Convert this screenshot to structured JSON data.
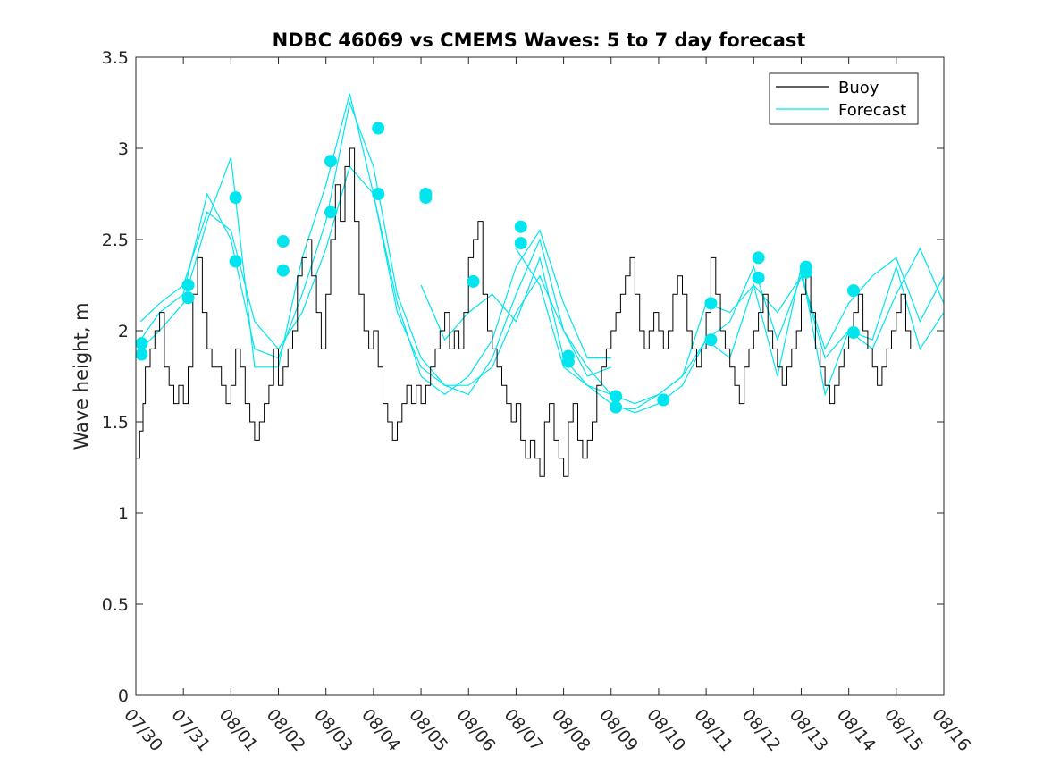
{
  "chart_data": {
    "type": "line",
    "title": "NDBC 46069 vs CMEMS Waves: 5 to 7 day forecast",
    "xlabel": "",
    "ylabel": "Wave height, m",
    "xlim": [
      0,
      17
    ],
    "ylim": [
      0,
      3.5
    ],
    "x_tick_labels": [
      "07/30",
      "07/31",
      "08/01",
      "08/02",
      "08/03",
      "08/04",
      "08/05",
      "08/06",
      "08/07",
      "08/08",
      "08/09",
      "08/10",
      "08/11",
      "08/12",
      "08/13",
      "08/14",
      "08/15",
      "08/16"
    ],
    "y_ticks": [
      0,
      0.5,
      1,
      1.5,
      2,
      2.5,
      3,
      3.5
    ],
    "y_tick_labels": [
      "0",
      "0.5",
      "1",
      "1.5",
      "2",
      "2.5",
      "3",
      "3.5"
    ],
    "legend": {
      "position": "top-right",
      "entries": [
        {
          "label": "Buoy",
          "color": "#000000"
        },
        {
          "label": "Forecast",
          "color": "#00e5ee"
        }
      ]
    },
    "colors": {
      "buoy": "#000000",
      "forecast": "#00e5ee"
    },
    "series": [
      {
        "name": "Buoy",
        "color": "#000000",
        "x": [
          0,
          0.08,
          0.15,
          0.2,
          0.3,
          0.4,
          0.5,
          0.6,
          0.7,
          0.8,
          0.9,
          1.0,
          1.1,
          1.2,
          1.3,
          1.4,
          1.5,
          1.6,
          1.7,
          1.8,
          1.9,
          2.0,
          2.1,
          2.2,
          2.3,
          2.4,
          2.5,
          2.6,
          2.7,
          2.8,
          2.9,
          3.0,
          3.1,
          3.2,
          3.3,
          3.4,
          3.5,
          3.6,
          3.7,
          3.8,
          3.9,
          4.0,
          4.1,
          4.2,
          4.3,
          4.4,
          4.5,
          4.6,
          4.7,
          4.8,
          4.9,
          5.0,
          5.1,
          5.2,
          5.3,
          5.4,
          5.5,
          5.6,
          5.7,
          5.8,
          5.9,
          6.0,
          6.1,
          6.2,
          6.3,
          6.4,
          6.5,
          6.6,
          6.7,
          6.8,
          6.9,
          7.0,
          7.1,
          7.2,
          7.3,
          7.4,
          7.5,
          7.6,
          7.7,
          7.8,
          7.9,
          8.0,
          8.1,
          8.2,
          8.3,
          8.4,
          8.5,
          8.6,
          8.7,
          8.8,
          8.9,
          9.0,
          9.1,
          9.2,
          9.3,
          9.4,
          9.5,
          9.6,
          9.7,
          9.8,
          9.9,
          10.0,
          10.1,
          10.2,
          10.3,
          10.4,
          10.5,
          10.6,
          10.7,
          10.8,
          10.9,
          11.0,
          11.1,
          11.2,
          11.3,
          11.4,
          11.5,
          11.6,
          11.7,
          11.8,
          11.9,
          12.0,
          12.1,
          12.2,
          12.3,
          12.4,
          12.5,
          12.6,
          12.7,
          12.8,
          12.9,
          13.0,
          13.1,
          13.2,
          13.3,
          13.4,
          13.5,
          13.6,
          13.7,
          13.8,
          13.9,
          14.0,
          14.1,
          14.2,
          14.3,
          14.4,
          14.5,
          14.6,
          14.7,
          14.8,
          14.9,
          15.0,
          15.1,
          15.2,
          15.3,
          15.4,
          15.5,
          15.6,
          15.7,
          15.8,
          15.9,
          16.0,
          16.1,
          16.2,
          16.3
        ],
        "y": [
          1.3,
          1.45,
          1.6,
          1.8,
          1.9,
          2.0,
          2.1,
          1.8,
          1.7,
          1.6,
          1.7,
          1.6,
          1.8,
          2.2,
          2.4,
          2.1,
          1.9,
          1.8,
          1.8,
          1.7,
          1.6,
          1.7,
          1.9,
          1.8,
          1.6,
          1.5,
          1.4,
          1.5,
          1.6,
          1.7,
          1.9,
          1.7,
          1.8,
          1.9,
          2.0,
          2.3,
          2.4,
          2.5,
          2.3,
          2.1,
          1.9,
          2.2,
          2.5,
          2.8,
          2.6,
          2.9,
          3.0,
          2.6,
          2.2,
          2.0,
          1.9,
          2.0,
          1.8,
          1.6,
          1.5,
          1.4,
          1.5,
          1.6,
          1.7,
          1.6,
          1.7,
          1.6,
          1.7,
          1.8,
          1.9,
          2.0,
          2.1,
          1.9,
          2.0,
          1.9,
          2.1,
          2.4,
          2.5,
          2.6,
          2.2,
          2.0,
          1.9,
          1.8,
          1.7,
          1.6,
          1.5,
          1.6,
          1.4,
          1.3,
          1.4,
          1.3,
          1.2,
          1.5,
          1.6,
          1.4,
          1.3,
          1.2,
          1.5,
          1.6,
          1.4,
          1.3,
          1.4,
          1.5,
          1.7,
          1.8,
          1.9,
          2.0,
          2.1,
          2.2,
          2.3,
          2.4,
          2.2,
          2.0,
          1.9,
          2.0,
          2.1,
          2.0,
          1.9,
          2.0,
          2.2,
          2.3,
          2.2,
          2.0,
          1.9,
          1.8,
          1.9,
          2.1,
          2.4,
          2.2,
          2.0,
          1.9,
          1.8,
          1.7,
          1.6,
          1.8,
          1.9,
          2.0,
          2.1,
          2.2,
          2.0,
          1.9,
          1.8,
          1.7,
          1.8,
          1.9,
          2.0,
          2.2,
          2.3,
          2.1,
          1.9,
          1.8,
          1.7,
          1.6,
          1.7,
          1.8,
          1.9,
          2.0,
          2.1,
          2.2,
          2.0,
          1.9,
          1.8,
          1.7,
          1.8,
          1.9,
          2.0,
          2.1,
          2.2,
          2.0,
          1.9
        ]
      }
    ],
    "forecast_curves": [
      {
        "name": "Forecast 1",
        "x": [
          0.1,
          0.5,
          1.0,
          1.5,
          2.0,
          2.5,
          3.0,
          3.5,
          4.0,
          4.5,
          5.0,
          5.5,
          6.0,
          6.5,
          7.0,
          7.5,
          8.0,
          8.5,
          9.0,
          9.5,
          10.0
        ],
        "y": [
          2.05,
          2.15,
          2.25,
          2.65,
          2.55,
          2.05,
          1.9,
          2.1,
          2.45,
          2.9,
          2.75,
          2.15,
          1.75,
          1.65,
          1.75,
          1.95,
          2.35,
          2.55,
          2.15,
          1.85,
          1.85
        ]
      },
      {
        "name": "Forecast 2",
        "x": [
          0.1,
          0.5,
          1.0,
          1.5,
          2.0,
          2.5,
          3.0,
          3.5,
          4.0,
          4.5,
          5.0,
          5.5,
          6.0,
          6.5,
          7.0,
          7.5,
          8.0,
          8.5,
          9.0,
          9.5,
          10.0
        ],
        "y": [
          1.95,
          2.1,
          2.2,
          2.75,
          2.5,
          1.9,
          1.85,
          2.2,
          2.6,
          3.25,
          2.9,
          2.2,
          1.85,
          1.7,
          1.65,
          1.85,
          2.2,
          2.5,
          2.0,
          1.75,
          1.8
        ]
      },
      {
        "name": "Forecast 3",
        "x": [
          0.1,
          0.5,
          1.0,
          1.5,
          2.0,
          2.5,
          3.0,
          3.5,
          4.0,
          4.5,
          5.0,
          5.5,
          6.0,
          6.5,
          7.0,
          7.5,
          8.0,
          8.5,
          9.0,
          9.5,
          10.0
        ],
        "y": [
          1.9,
          2.0,
          2.15,
          2.6,
          2.95,
          1.8,
          1.8,
          2.4,
          2.8,
          3.3,
          2.75,
          2.1,
          1.8,
          1.7,
          1.7,
          1.8,
          2.1,
          2.3,
          2.0,
          1.8,
          1.65
        ]
      },
      {
        "name": "Forecast 4",
        "x": [
          6.0,
          6.5,
          7.0,
          7.5,
          8.0,
          8.5,
          9.0,
          9.5,
          10.0,
          10.5,
          11.0,
          11.5,
          12.0,
          12.5,
          13.0,
          13.5,
          14.0,
          14.5,
          15.0,
          15.5,
          16.0,
          16.5,
          17.0
        ],
        "y": [
          2.25,
          1.95,
          2.1,
          2.2,
          2.05,
          2.4,
          1.85,
          1.7,
          1.6,
          1.55,
          1.6,
          1.7,
          1.95,
          2.05,
          2.35,
          1.95,
          2.3,
          1.9,
          2.15,
          2.3,
          2.4,
          2.05,
          2.3
        ]
      },
      {
        "name": "Forecast 5",
        "x": [
          8.0,
          8.5,
          9.0,
          9.5,
          10.0,
          10.5,
          11.0,
          11.5,
          12.0,
          12.5,
          13.0,
          13.5,
          14.0,
          14.5,
          15.0,
          15.5,
          16.0,
          16.5,
          17.0
        ],
        "y": [
          2.45,
          2.25,
          1.8,
          1.7,
          1.65,
          1.6,
          1.65,
          1.75,
          2.15,
          2.1,
          2.25,
          2.1,
          2.3,
          1.85,
          2.0,
          1.9,
          2.2,
          2.45,
          2.15
        ]
      },
      {
        "name": "Forecast 6",
        "x": [
          10.0,
          10.5,
          11.0,
          11.5,
          12.0,
          12.5,
          13.0,
          13.5,
          14.0,
          14.5,
          15.0,
          15.5,
          16.0,
          16.5,
          17.0
        ],
        "y": [
          1.58,
          1.57,
          1.65,
          1.75,
          1.95,
          1.85,
          2.25,
          1.75,
          2.35,
          1.65,
          2.0,
          1.95,
          2.35,
          1.9,
          2.1
        ]
      }
    ],
    "forecast_markers": {
      "x": [
        0.12,
        0.12,
        1.1,
        1.1,
        2.1,
        2.1,
        3.1,
        3.1,
        4.1,
        4.1,
        5.1,
        5.1,
        6.1,
        6.1,
        7.1,
        8.1,
        8.1,
        9.1,
        9.1,
        10.1,
        10.1,
        11.1,
        12.1,
        12.1,
        13.1,
        13.1,
        14.1,
        14.1,
        15.1,
        15.1
      ],
      "y": [
        1.93,
        1.87,
        2.25,
        2.18,
        2.73,
        2.38,
        2.49,
        2.33,
        2.93,
        2.65,
        3.11,
        2.75,
        2.75,
        2.73,
        2.27,
        2.57,
        2.48,
        1.86,
        1.83,
        1.64,
        1.58,
        1.62,
        2.15,
        1.95,
        2.4,
        2.29,
        2.35,
        2.32,
        2.22,
        1.99
      ]
    }
  }
}
